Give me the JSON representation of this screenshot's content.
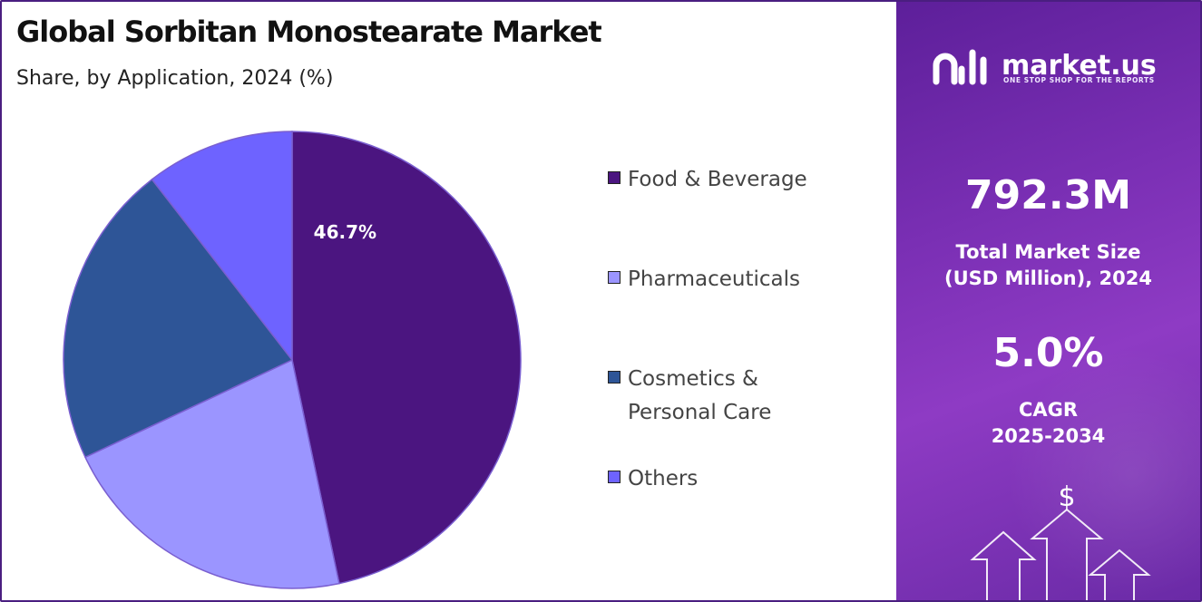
{
  "header": {
    "title": "Global Sorbitan Monostearate Market",
    "subtitle": "Share, by Application, 2024 (%)"
  },
  "chart_data": {
    "type": "pie",
    "title": "Global Sorbitan Monostearate Market",
    "subtitle": "Share, by Application, 2024 (%)",
    "categories": [
      "Food & Beverage",
      "Pharmaceuticals",
      "Cosmetics & Personal Care",
      "Others"
    ],
    "values": [
      46.7,
      21.3,
      21.5,
      10.5
    ],
    "data_labels": [
      "46.7%",
      "",
      "",
      ""
    ],
    "colors": [
      "#4b1580",
      "#9b95ff",
      "#2e5597",
      "#6e63ff"
    ],
    "start_angle_deg": 0,
    "direction": "clockwise",
    "legend_position": "right"
  },
  "legend": {
    "items": [
      {
        "label_line1": "Food & Beverage",
        "label_line2": ""
      },
      {
        "label_line1": "Pharmaceuticals",
        "label_line2": ""
      },
      {
        "label_line1": "Cosmetics &",
        "label_line2": "Personal Care"
      },
      {
        "label_line1": "Others",
        "label_line2": ""
      }
    ]
  },
  "sidebar": {
    "brand": "market.us",
    "tagline": "ONE STOP SHOP FOR THE REPORTS",
    "market_size_value": "792.3M",
    "market_size_label_line1": "Total Market Size",
    "market_size_label_line2": "(USD Million), 2024",
    "cagr_value": "5.0%",
    "cagr_label_line1": "CAGR",
    "cagr_label_line2": "2025-2034",
    "decor_symbol": "$",
    "colors": {
      "panel": "#7a2fb4",
      "text": "#ffffff"
    }
  }
}
